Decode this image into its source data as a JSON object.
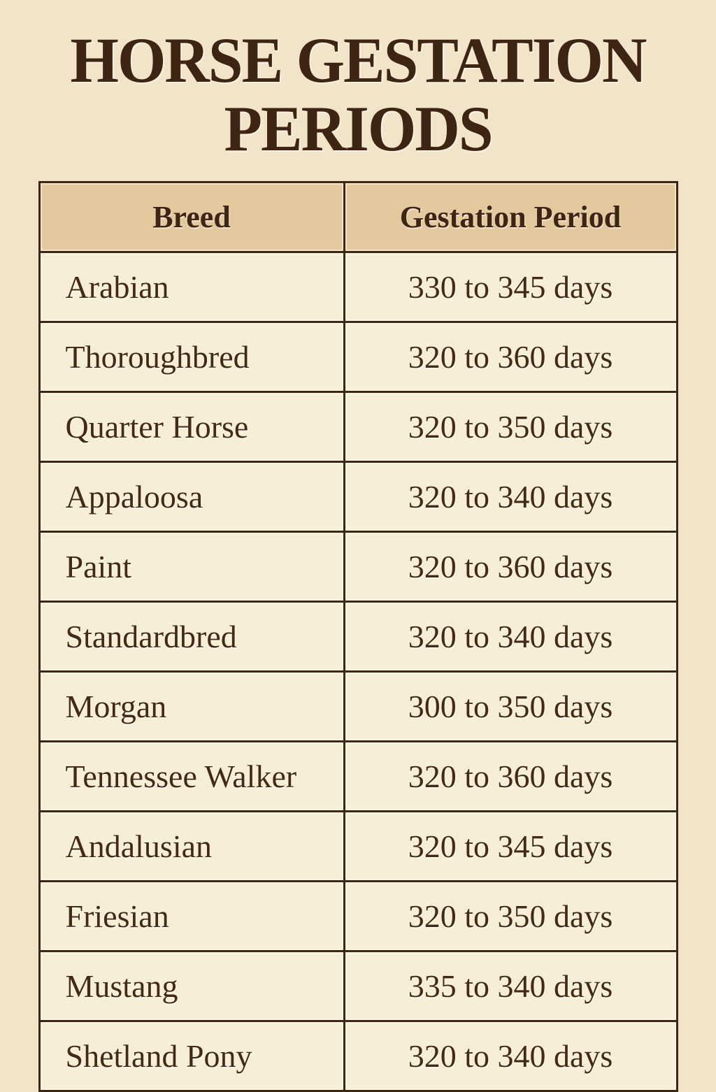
{
  "poster": {
    "title": "HORSE GESTATION PERIODS"
  },
  "table": {
    "columns": [
      "Breed",
      "Gestation Period"
    ],
    "rows": [
      {
        "breed": "Arabian",
        "period": "330 to 345 days"
      },
      {
        "breed": "Thoroughbred",
        "period": "320 to 360 days"
      },
      {
        "breed": "Quarter Horse",
        "period": "320 to 350 days"
      },
      {
        "breed": "Appaloosa",
        "period": "320 to 340 days"
      },
      {
        "breed": "Paint",
        "period": "320 to 360 days"
      },
      {
        "breed": "Standardbred",
        "period": "320 to 340 days"
      },
      {
        "breed": "Morgan",
        "period": "300 to 350 days"
      },
      {
        "breed": "Tennessee Walker",
        "period": "320 to 360 days"
      },
      {
        "breed": "Andalusian",
        "period": "320 to 345 days"
      },
      {
        "breed": "Friesian",
        "period": "320 to 350 days"
      },
      {
        "breed": "Mustang",
        "period": "335 to 340 days"
      },
      {
        "breed": "Shetland Pony",
        "period": "320 to 340 days"
      }
    ]
  },
  "colors": {
    "page_background": "#f2e4c8",
    "header_background": "#e4c99f",
    "cell_background": "#f7eed8",
    "border": "#3c2715",
    "text": "#3e2513"
  },
  "chart_data": {
    "type": "table",
    "title": "HORSE GESTATION PERIODS",
    "columns": [
      "Breed",
      "Gestation Period"
    ],
    "rows": [
      [
        "Arabian",
        "330 to 345 days"
      ],
      [
        "Thoroughbred",
        "320 to 360 days"
      ],
      [
        "Quarter Horse",
        "320 to 350 days"
      ],
      [
        "Appaloosa",
        "320 to 340 days"
      ],
      [
        "Paint",
        "320 to 360 days"
      ],
      [
        "Standardbred",
        "320 to 340 days"
      ],
      [
        "Morgan",
        "300 to 350 days"
      ],
      [
        "Tennessee Walker",
        "320 to 360 days"
      ],
      [
        "Andalusian",
        "320 to 345 days"
      ],
      [
        "Friesian",
        "320 to 350 days"
      ],
      [
        "Mustang",
        "335 to 340 days"
      ],
      [
        "Shetland Pony",
        "320 to 340 days"
      ]
    ],
    "gestation_days_min": [
      330,
      320,
      320,
      320,
      320,
      320,
      300,
      320,
      320,
      320,
      335,
      320
    ],
    "gestation_days_max": [
      345,
      360,
      350,
      340,
      360,
      340,
      350,
      360,
      345,
      350,
      340,
      340
    ],
    "unit": "days"
  }
}
